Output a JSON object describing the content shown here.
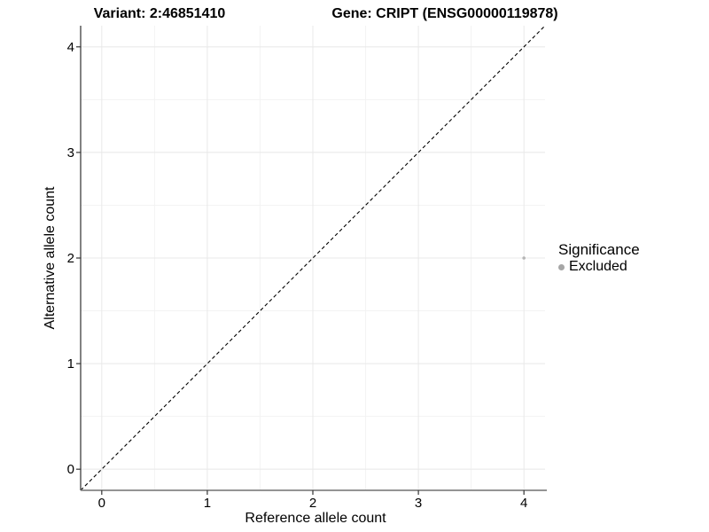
{
  "header": {
    "variant_title": "Variant: 2:46851410",
    "gene_title": "Gene: CRIPT (ENSG00000119878)"
  },
  "chart_data": {
    "type": "scatter",
    "xlabel": "Reference allele count",
    "ylabel": "Alternative allele count",
    "xlim": [
      -0.2,
      4.2
    ],
    "ylim": [
      -0.2,
      4.2
    ],
    "x_ticks": [
      0,
      1,
      2,
      3,
      4
    ],
    "y_ticks": [
      0,
      1,
      2,
      3,
      4
    ],
    "minor_breaks": [
      0.5,
      1.5,
      2.5,
      3.5
    ],
    "grid": "on",
    "points": [
      {
        "x": 4,
        "y": 2,
        "significance": "Excluded"
      }
    ],
    "abline": {
      "slope": 1,
      "intercept": 0,
      "linetype": "dashed",
      "color": "#000000"
    },
    "legend": {
      "title": "Significance",
      "position": "right",
      "items": [
        {
          "label": "Excluded",
          "color": "#a6a6a6"
        }
      ]
    },
    "colors": {
      "background": "#ffffff",
      "grid_major": "#e8e8e8",
      "grid_minor": "#f3f3f3",
      "y_axis_line": "#2f2f2f",
      "x_axis_line": "#858585",
      "tick_mark": "#333333",
      "tick_label": "#000000",
      "point": "#b5b5b5",
      "identity_line": "#000000"
    }
  }
}
